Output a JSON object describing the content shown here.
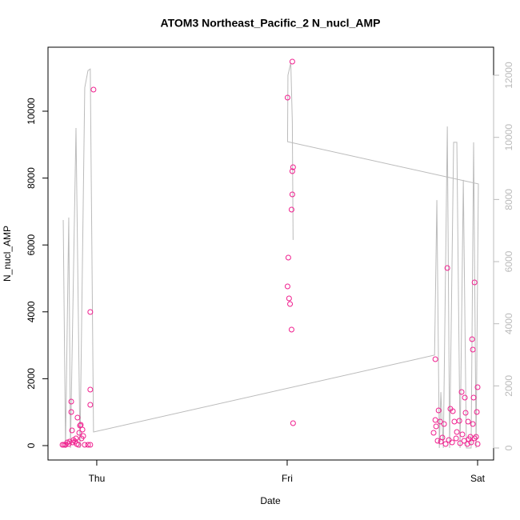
{
  "chart_data": {
    "type": "scatter",
    "title": "ATOM3 Northeast_Pacific_2 N_nucl_AMP",
    "xlabel": "Date",
    "ylabel": "N_nucl_AMP",
    "xlim": [
      -0.256,
      2.084
    ],
    "xticks": [
      {
        "value": 0,
        "label": "Thu"
      },
      {
        "value": 1,
        "label": "Fri"
      },
      {
        "value": 2,
        "label": "Sat"
      }
    ],
    "ylim": [
      -431,
      11914
    ],
    "yticks": [
      0,
      2000,
      4000,
      6000,
      8000,
      10000
    ],
    "y2lim": [
      -386,
      12902
    ],
    "y2ticks": [
      0,
      2000,
      4000,
      6000,
      8000,
      10000,
      12000
    ],
    "y2color": "#bbbbbb",
    "series": [
      {
        "type": "scatter",
        "color": "#f0208f",
        "x": [
          -0.017,
          -0.034,
          -0.034,
          -0.034,
          -0.134,
          -0.134,
          -0.13,
          -0.084,
          -0.101,
          -0.088,
          -0.075,
          -0.092,
          -0.08,
          -0.071,
          -0.109,
          -0.143,
          -0.155,
          -0.172,
          -0.18,
          -0.164,
          -0.147,
          -0.126,
          -0.113,
          -0.096,
          -0.063,
          -0.046,
          -0.034,
          -0.122,
          -0.105,
          1.002,
          1.027,
          1.031,
          1.027,
          1.027,
          1.023,
          1.006,
          1.002,
          1.01,
          1.015,
          1.023,
          1.031,
          1.778,
          1.841,
          1.984,
          1.971,
          1.975,
          2.0,
          1.916,
          1.979,
          1.933,
          1.795,
          1.857,
          1.87,
          1.996,
          1.937,
          1.778,
          1.803,
          1.878,
          1.904,
          1.95,
          1.824,
          1.782,
          1.975,
          1.891,
          1.92,
          1.962,
          1.992,
          1.815,
          1.849,
          1.79,
          1.866,
          1.908,
          1.946,
          2.0,
          1.832,
          1.966,
          1.929,
          1.887,
          1.807,
          1.954,
          1.984,
          1.769
        ],
        "values": [
          10646,
          3995,
          1675,
          1220,
          1316,
          1005,
          455,
          622,
          837,
          598,
          478,
          383,
          215,
          287,
          215,
          120,
          96,
          24,
          24,
          24,
          48,
          96,
          120,
          24,
          24,
          24,
          24,
          167,
          48,
          10407,
          11483,
          8325,
          8206,
          7512,
          7057,
          5622,
          4761,
          4402,
          4234,
          3469,
          670,
          2584,
          5311,
          4880,
          3182,
          2871,
          1746,
          1603,
          1435,
          1435,
          1053,
          1100,
          1029,
          1005,
          981,
          766,
          718,
          718,
          742,
          718,
          646,
          574,
          646,
          407,
          335,
          263,
          263,
          239,
          167,
          144,
          96,
          72,
          48,
          48,
          48,
          96,
          144,
          215,
          120,
          191,
          215,
          383
        ]
      },
      {
        "type": "line",
        "axis": "y2",
        "color": "#bbbbbb",
        "x": [
          -0.176,
          -0.164,
          -0.147,
          -0.138,
          -0.109,
          -0.088,
          -0.063,
          -0.046,
          -0.034,
          -0.017,
          1.774,
          1.786,
          1.799,
          1.807,
          1.82,
          1.841,
          1.853,
          1.874,
          1.891,
          1.908,
          1.925,
          1.941,
          1.966,
          1.979,
          1.992,
          2.004,
          1.002,
          1.004,
          1.019,
          1.027,
          1.031
        ],
        "values": [
          7340,
          0,
          7420,
          0,
          10300,
          0,
          11600,
          12150,
          12200,
          515,
          2990,
          7980,
          0,
          1800,
          0,
          10350,
          0,
          9840,
          9840,
          0,
          8630,
          0,
          0,
          9840,
          0,
          8500,
          9860,
          12000,
          12400,
          10500,
          6700
        ]
      }
    ]
  }
}
